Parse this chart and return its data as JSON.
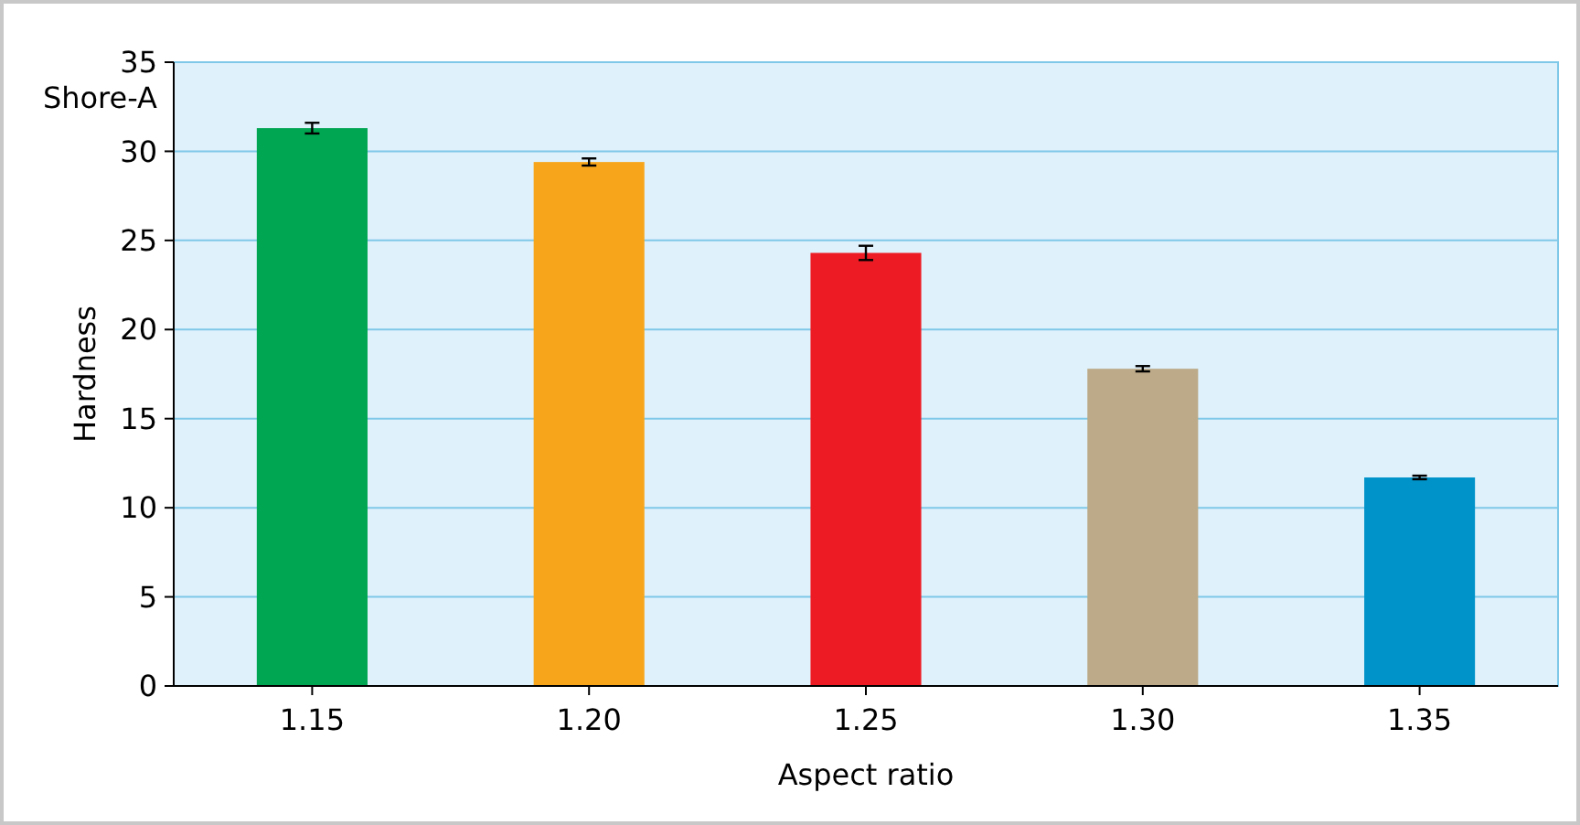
{
  "chart_data": {
    "type": "bar",
    "xlabel": "Aspect ratio",
    "ylabel": "Hardness",
    "annotations": [
      "Shore-A"
    ],
    "categories": [
      "1.15",
      "1.20",
      "1.25",
      "1.30",
      "1.35"
    ],
    "values": [
      31.3,
      29.4,
      24.3,
      17.8,
      11.7
    ],
    "errors": [
      0.3,
      0.2,
      0.4,
      0.15,
      0.1
    ],
    "colors": [
      "#00a651",
      "#f7a61c",
      "#ed1c24",
      "#bcaa88",
      "#0093c9"
    ],
    "ylim": [
      0,
      35
    ],
    "yticks": [
      0,
      5,
      10,
      15,
      20,
      25,
      30,
      35
    ],
    "grid": "y"
  }
}
